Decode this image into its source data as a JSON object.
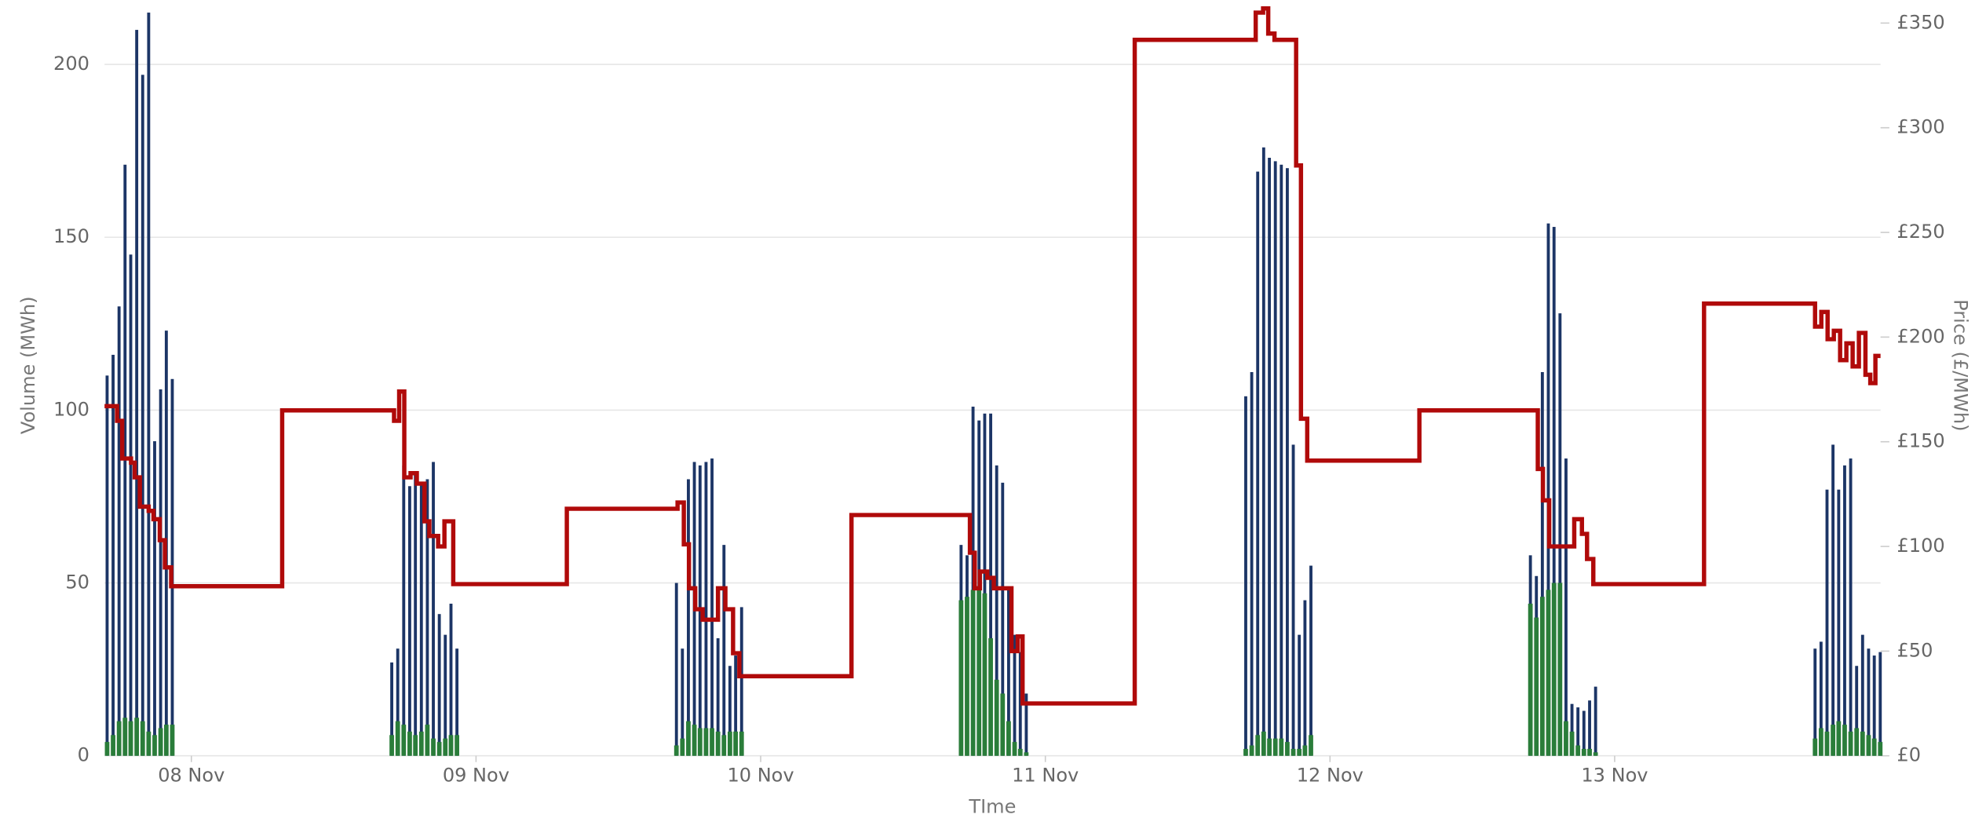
{
  "chart_data": {
    "type": "bar",
    "x_label": "TIme",
    "y_label": "Volume (MWh)",
    "y2_label": "Price (£/MWh)",
    "xlim": [
      -0.305,
      5.934
    ],
    "xticks": [
      {
        "value": 0,
        "label": "08 Nov"
      },
      {
        "value": 1,
        "label": "09 Nov"
      },
      {
        "value": 2,
        "label": "10 Nov"
      },
      {
        "value": 3,
        "label": "11 Nov"
      },
      {
        "value": 4,
        "label": "12 Nov"
      },
      {
        "value": 5,
        "label": "13 Nov"
      }
    ],
    "ylim": [
      0,
      215
    ],
    "yticks": [
      0,
      50,
      100,
      150,
      200
    ],
    "y2lim": [
      0,
      355
    ],
    "y2ticks": [
      {
        "value": 0,
        "label": "£0"
      },
      {
        "value": 50,
        "label": "£50"
      },
      {
        "value": 100,
        "label": "£100"
      },
      {
        "value": 150,
        "label": "£150"
      },
      {
        "value": 200,
        "label": "£200"
      },
      {
        "value": 250,
        "label": "£250"
      },
      {
        "value": 300,
        "label": "£300"
      },
      {
        "value": 350,
        "label": "£350"
      }
    ],
    "grid": true,
    "series": [
      {
        "type": "bar",
        "color": "#1c3566",
        "x": [
          -0.296,
          -0.275,
          -0.254,
          -0.233,
          -0.213,
          -0.192,
          -0.171,
          -0.15,
          -0.129,
          -0.108,
          -0.088,
          -0.067,
          0.704,
          0.725,
          0.746,
          0.767,
          0.787,
          0.808,
          0.829,
          0.85,
          0.871,
          0.892,
          0.912,
          0.933,
          1.704,
          1.725,
          1.746,
          1.767,
          1.787,
          1.808,
          1.829,
          1.85,
          1.871,
          1.892,
          1.912,
          1.933,
          2.704,
          2.725,
          2.746,
          2.767,
          2.787,
          2.808,
          2.829,
          2.85,
          2.871,
          2.892,
          2.912,
          2.933,
          3.704,
          3.725,
          3.746,
          3.767,
          3.787,
          3.808,
          3.829,
          3.85,
          3.871,
          3.892,
          3.912,
          3.933,
          4.704,
          4.725,
          4.746,
          4.767,
          4.787,
          4.808,
          4.829,
          4.85,
          4.871,
          4.892,
          4.912,
          4.933,
          5.704,
          5.725,
          5.746,
          5.767,
          5.787,
          5.808,
          5.829,
          5.85,
          5.871,
          5.892,
          5.912,
          5.933
        ],
        "values": [
          110,
          116,
          130,
          171,
          145,
          210,
          197,
          215,
          91,
          106,
          123,
          109,
          27,
          31,
          84,
          78,
          82,
          79,
          80,
          85,
          41,
          35,
          44,
          31,
          50,
          31,
          80,
          85,
          84,
          85,
          86,
          34,
          61,
          26,
          29,
          43,
          61,
          58,
          101,
          97,
          99,
          99,
          84,
          79,
          49,
          35,
          30,
          18,
          104,
          111,
          169,
          176,
          173,
          172,
          171,
          170,
          90,
          35,
          45,
          55,
          58,
          52,
          111,
          154,
          153,
          128,
          86,
          15,
          14,
          13,
          16,
          20,
          31,
          33,
          77,
          90,
          77,
          84,
          86,
          26,
          35,
          31,
          29,
          30
        ]
      },
      {
        "type": "bar",
        "color": "#2a7d3a",
        "x": [
          -0.296,
          -0.275,
          -0.254,
          -0.233,
          -0.213,
          -0.192,
          -0.171,
          -0.15,
          -0.129,
          -0.108,
          -0.088,
          -0.067,
          0.704,
          0.725,
          0.746,
          0.767,
          0.787,
          0.808,
          0.829,
          0.85,
          0.871,
          0.892,
          0.912,
          0.933,
          1.704,
          1.725,
          1.746,
          1.767,
          1.787,
          1.808,
          1.829,
          1.85,
          1.871,
          1.892,
          1.912,
          1.933,
          2.704,
          2.725,
          2.746,
          2.767,
          2.787,
          2.808,
          2.829,
          2.85,
          2.871,
          2.892,
          2.912,
          2.933,
          3.704,
          3.725,
          3.746,
          3.767,
          3.787,
          3.808,
          3.829,
          3.85,
          3.871,
          3.892,
          3.912,
          3.933,
          4.704,
          4.725,
          4.746,
          4.767,
          4.787,
          4.808,
          4.829,
          4.85,
          4.871,
          4.892,
          4.912,
          4.933,
          5.704,
          5.725,
          5.746,
          5.767,
          5.787,
          5.808,
          5.829,
          5.85,
          5.871,
          5.892,
          5.912,
          5.933
        ],
        "values": [
          4,
          6,
          10,
          11,
          10,
          11,
          10,
          7,
          6,
          8,
          9,
          9,
          6,
          10,
          9,
          7,
          6,
          7,
          9,
          5,
          4,
          5,
          6,
          6,
          3,
          5,
          10,
          9,
          8,
          8,
          8,
          7,
          6,
          7,
          7,
          7,
          45,
          46,
          48,
          49,
          47,
          34,
          22,
          18,
          10,
          4,
          2,
          1,
          2,
          3,
          6,
          7,
          5,
          5,
          5,
          4,
          2,
          2,
          3,
          6,
          44,
          40,
          46,
          48,
          50,
          50,
          10,
          7,
          3,
          2,
          2,
          1,
          5,
          8,
          7,
          9,
          10,
          9,
          7,
          8,
          7,
          6,
          5,
          4
        ]
      },
      {
        "type": "line",
        "step": "after",
        "axis": "y2",
        "color": "#b00a0a",
        "x": [
          -0.305,
          -0.261,
          -0.243,
          -0.212,
          -0.199,
          -0.181,
          -0.15,
          -0.133,
          -0.111,
          -0.093,
          -0.071,
          0.319,
          0.712,
          0.73,
          0.748,
          0.77,
          0.792,
          0.819,
          0.836,
          0.867,
          0.889,
          0.92,
          1.319,
          1.708,
          1.73,
          1.748,
          1.77,
          1.796,
          1.85,
          1.876,
          1.903,
          1.925,
          2.319,
          2.735,
          2.752,
          2.77,
          2.796,
          2.819,
          2.881,
          2.903,
          2.92,
          3.314,
          3.739,
          3.765,
          3.783,
          3.805,
          3.881,
          3.898,
          3.92,
          4.314,
          4.73,
          4.748,
          4.77,
          4.858,
          4.885,
          4.903,
          4.925,
          5.314,
          5.704,
          5.726,
          5.748,
          5.77,
          5.792,
          5.814,
          5.836,
          5.858,
          5.881,
          5.898,
          5.916
        ],
        "values": [
          167,
          160,
          142,
          140,
          133,
          119,
          117,
          113,
          103,
          90,
          81,
          165,
          160,
          174,
          133,
          135,
          130,
          112,
          105,
          100,
          112,
          82,
          118,
          121,
          101,
          80,
          70,
          65,
          80,
          70,
          49,
          38,
          115,
          97,
          80,
          88,
          85,
          80,
          50,
          57,
          25,
          342,
          355,
          357,
          345,
          342,
          282,
          161,
          141,
          165,
          137,
          122,
          100,
          113,
          106,
          94,
          82,
          216,
          205,
          212,
          199,
          203,
          189,
          197,
          186,
          202,
          182,
          178,
          191
        ]
      }
    ]
  }
}
